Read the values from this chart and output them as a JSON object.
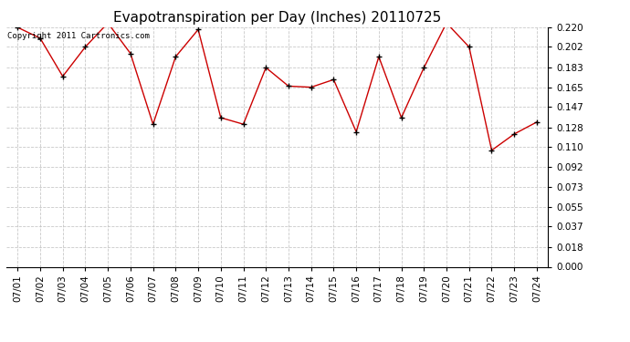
{
  "title": "Evapotranspiration per Day (Inches) 20110725",
  "copyright_text": "Copyright 2011 Cartronics.com",
  "x_labels": [
    "07/01",
    "07/02",
    "07/03",
    "07/04",
    "07/05",
    "07/06",
    "07/07",
    "07/08",
    "07/09",
    "07/10",
    "07/11",
    "07/12",
    "07/13",
    "07/14",
    "07/15",
    "07/16",
    "07/17",
    "07/18",
    "07/19",
    "07/20",
    "07/21",
    "07/22",
    "07/23",
    "07/24"
  ],
  "y_values": [
    0.22,
    0.21,
    0.175,
    0.202,
    0.224,
    0.196,
    0.131,
    0.193,
    0.218,
    0.137,
    0.131,
    0.183,
    0.166,
    0.165,
    0.172,
    0.124,
    0.193,
    0.137,
    0.183,
    0.224,
    0.202,
    0.107,
    0.122,
    0.133
  ],
  "line_color": "#cc0000",
  "marker": "+",
  "marker_color": "#000000",
  "bg_color": "#ffffff",
  "grid_color": "#bbbbbb",
  "y_min": 0.0,
  "y_max": 0.22,
  "y_ticks": [
    0.0,
    0.018,
    0.037,
    0.055,
    0.073,
    0.092,
    0.11,
    0.128,
    0.147,
    0.165,
    0.183,
    0.202,
    0.22
  ],
  "title_fontsize": 11,
  "tick_fontsize": 7.5,
  "copyright_fontsize": 6.5
}
